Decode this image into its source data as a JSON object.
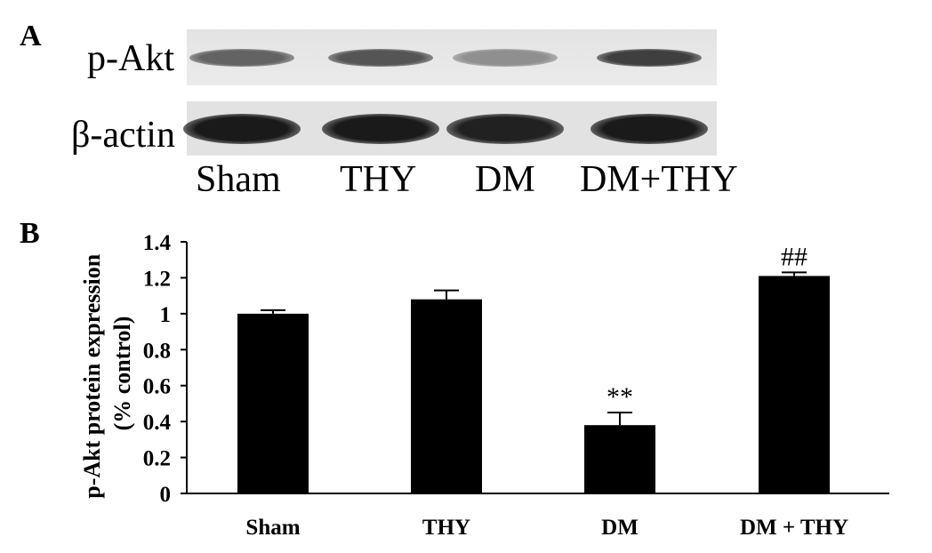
{
  "panels": {
    "a_label": "A",
    "b_label": "B"
  },
  "blot": {
    "rows": [
      {
        "label": "p-Akt",
        "intensity": [
          0.62,
          0.68,
          0.42,
          0.78
        ]
      },
      {
        "label": "β-actin",
        "intensity": [
          0.95,
          0.95,
          0.92,
          0.95
        ]
      }
    ],
    "lanes": [
      "Sham",
      "THY",
      "DM",
      "DM+THY"
    ]
  },
  "chart_data": {
    "type": "bar",
    "categories": [
      "Sham",
      "THY",
      "DM",
      "DM + THY"
    ],
    "values": [
      1.0,
      1.08,
      0.38,
      1.21
    ],
    "errors": [
      0.02,
      0.05,
      0.07,
      0.02
    ],
    "annotations": [
      "",
      "",
      "**",
      "##"
    ],
    "ylabel": "p-Akt protein expression\n(% control)",
    "ylabel_lines": [
      "p-Akt protein expression",
      "(% control)"
    ],
    "xlabel": "",
    "ylim": [
      0,
      1.4
    ],
    "yticks": [
      0,
      0.2,
      0.4,
      0.6,
      0.8,
      1,
      1.2,
      1.4
    ],
    "ytick_labels": [
      "0",
      "0.2",
      "0.4",
      "0.6",
      "0.8",
      "1",
      "1.2",
      "1.4"
    ],
    "grid": false,
    "bar_color": "#000000"
  }
}
